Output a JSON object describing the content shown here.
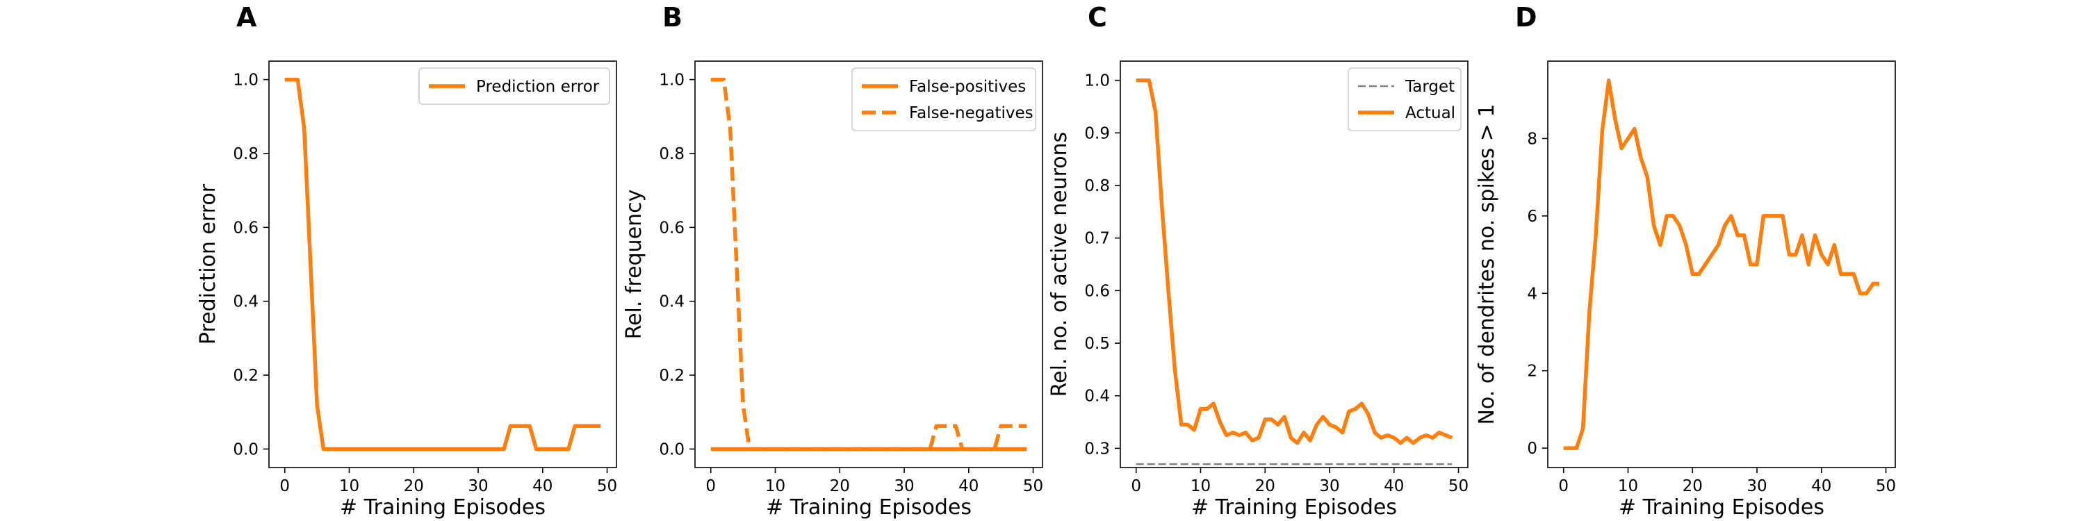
{
  "panels": [
    {
      "letter": "A",
      "chart_data": {
        "type": "line",
        "xlabel": "# Training Episodes",
        "ylabel": "Prediction error",
        "xlim": [
          -2.45,
          51.45
        ],
        "ylim": [
          -0.05,
          1.05
        ],
        "xticks": [
          0,
          10,
          20,
          30,
          40,
          50
        ],
        "yticks": [
          0.0,
          0.2,
          0.4,
          0.6,
          0.8,
          1.0
        ],
        "ytick_decimals": 1,
        "legend": {
          "placement": "top-right"
        },
        "series": [
          {
            "name": "Prediction error",
            "color": "#ff7f0e",
            "dash": "solid",
            "x": [
              0,
              1,
              2,
              3,
              4,
              5,
              6,
              7,
              8,
              9,
              10,
              11,
              12,
              13,
              14,
              15,
              16,
              17,
              18,
              19,
              20,
              21,
              22,
              23,
              24,
              25,
              26,
              27,
              28,
              29,
              30,
              31,
              32,
              33,
              34,
              35,
              36,
              37,
              38,
              39,
              40,
              41,
              42,
              43,
              44,
              45,
              46,
              47,
              48,
              49
            ],
            "y": [
              1,
              1,
              1,
              0.87,
              0.5,
              0.12,
              0,
              0,
              0,
              0,
              0,
              0,
              0,
              0,
              0,
              0,
              0,
              0,
              0,
              0,
              0,
              0,
              0,
              0,
              0,
              0,
              0,
              0,
              0,
              0,
              0,
              0,
              0,
              0,
              0,
              0.0625,
              0.0625,
              0.0625,
              0.0625,
              0,
              0,
              0,
              0,
              0,
              0,
              0.0625,
              0.0625,
              0.0625,
              0.0625,
              0.0625
            ]
          }
        ]
      }
    },
    {
      "letter": "B",
      "chart_data": {
        "type": "line",
        "xlabel": "# Training Episodes",
        "ylabel": "Rel. frequency",
        "xlim": [
          -2.45,
          51.45
        ],
        "ylim": [
          -0.05,
          1.05
        ],
        "xticks": [
          0,
          10,
          20,
          30,
          40,
          50
        ],
        "yticks": [
          0.0,
          0.2,
          0.4,
          0.6,
          0.8,
          1.0
        ],
        "ytick_decimals": 1,
        "legend": {
          "placement": "top-right"
        },
        "series": [
          {
            "name": "False-positives",
            "color": "#ff7f0e",
            "dash": "solid",
            "x": [
              0,
              49
            ],
            "y": [
              0,
              0
            ]
          },
          {
            "name": "False-negatives",
            "color": "#ff7f0e",
            "dash": "dashed",
            "x": [
              0,
              1,
              2,
              3,
              4,
              5,
              6,
              7,
              8,
              9,
              10,
              11,
              12,
              13,
              14,
              15,
              16,
              17,
              18,
              19,
              20,
              21,
              22,
              23,
              24,
              25,
              26,
              27,
              28,
              29,
              30,
              31,
              32,
              33,
              34,
              35,
              36,
              37,
              38,
              39,
              40,
              41,
              42,
              43,
              44,
              45,
              46,
              47,
              48,
              49
            ],
            "y": [
              1,
              1,
              1,
              0.87,
              0.5,
              0.12,
              0,
              0,
              0,
              0,
              0,
              0,
              0,
              0,
              0,
              0,
              0,
              0,
              0,
              0,
              0,
              0,
              0,
              0,
              0,
              0,
              0,
              0,
              0,
              0,
              0,
              0,
              0,
              0,
              0,
              0.0625,
              0.0625,
              0.0625,
              0.0625,
              0,
              0,
              0,
              0,
              0,
              0,
              0.0625,
              0.0625,
              0.0625,
              0.0625,
              0.0625
            ]
          }
        ]
      }
    },
    {
      "letter": "C",
      "chart_data": {
        "type": "line",
        "xlabel": "# Training Episodes",
        "ylabel": "Rel. no. of active neurons",
        "xlim": [
          -2.45,
          51.45
        ],
        "ylim": [
          0.2635,
          1.0365
        ],
        "xticks": [
          0,
          10,
          20,
          30,
          40,
          50
        ],
        "yticks": [
          0.3,
          0.4,
          0.5,
          0.6,
          0.7,
          0.8,
          0.9,
          1.0
        ],
        "ytick_decimals": 1,
        "legend": {
          "placement": "top-right"
        },
        "series": [
          {
            "name": "Target",
            "color": "#808080",
            "dash": "dashed",
            "x": [
              0,
              49
            ],
            "y": [
              0.27,
              0.27
            ]
          },
          {
            "name": "Actual",
            "color": "#ff7f0e",
            "dash": "solid",
            "x": [
              0,
              1,
              2,
              3,
              4,
              5,
              6,
              7,
              8,
              9,
              10,
              11,
              12,
              13,
              14,
              15,
              16,
              17,
              18,
              19,
              20,
              21,
              22,
              23,
              24,
              25,
              26,
              27,
              28,
              29,
              30,
              31,
              32,
              33,
              34,
              35,
              36,
              37,
              38,
              39,
              40,
              41,
              42,
              43,
              44,
              45,
              46,
              47,
              48,
              49
            ],
            "y": [
              1,
              1,
              1,
              0.94,
              0.76,
              0.6,
              0.45,
              0.345,
              0.345,
              0.335,
              0.375,
              0.375,
              0.385,
              0.35,
              0.325,
              0.33,
              0.325,
              0.33,
              0.315,
              0.32,
              0.355,
              0.355,
              0.345,
              0.36,
              0.32,
              0.31,
              0.33,
              0.315,
              0.345,
              0.36,
              0.345,
              0.34,
              0.33,
              0.37,
              0.375,
              0.385,
              0.365,
              0.33,
              0.32,
              0.325,
              0.32,
              0.31,
              0.32,
              0.31,
              0.32,
              0.325,
              0.32,
              0.33,
              0.325,
              0.32
            ]
          }
        ]
      }
    },
    {
      "letter": "D",
      "chart_data": {
        "type": "line",
        "xlabel": "# Training Episodes",
        "ylabel": "No. of dendrites no. spikes > 1",
        "xlim": [
          -2.45,
          51.45
        ],
        "ylim": [
          -0.5,
          10
        ],
        "xticks": [
          0,
          10,
          20,
          30,
          40,
          50
        ],
        "yticks": [
          0,
          2,
          4,
          6,
          8
        ],
        "ytick_decimals": 0,
        "legend": null,
        "series": [
          {
            "color": "#ff7f0e",
            "dash": "solid",
            "x": [
              0,
              1,
              2,
              3,
              4,
              5,
              6,
              7,
              8,
              9,
              10,
              11,
              12,
              13,
              14,
              15,
              16,
              17,
              18,
              19,
              20,
              21,
              22,
              23,
              24,
              25,
              26,
              27,
              28,
              29,
              30,
              31,
              32,
              33,
              34,
              35,
              36,
              37,
              38,
              39,
              40,
              41,
              42,
              43,
              44,
              45,
              46,
              47,
              48,
              49
            ],
            "y": [
              0,
              0,
              0,
              0.5,
              3.5,
              5.5,
              8.2,
              9.5,
              8.5,
              7.75,
              8,
              8.25,
              7.5,
              7,
              5.75,
              5.25,
              6,
              6,
              5.75,
              5.25,
              4.5,
              4.5,
              4.75,
              5,
              5.25,
              5.75,
              6,
              5.5,
              5.5,
              4.75,
              4.75,
              6,
              6,
              6,
              6,
              5,
              5,
              5.5,
              4.75,
              5.5,
              5,
              4.75,
              5.25,
              4.5,
              4.5,
              4.5,
              4,
              4,
              4.25,
              4.25
            ]
          }
        ]
      }
    }
  ]
}
